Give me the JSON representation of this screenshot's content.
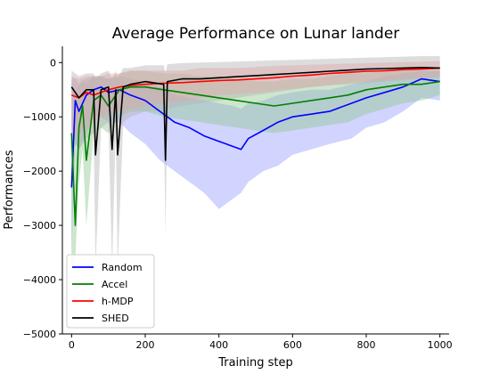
{
  "chart_data": {
    "type": "line",
    "title": "Average Performance on Lunar lander",
    "xlabel": "Training step",
    "ylabel": "Performances",
    "xlim": [
      -25,
      1025
    ],
    "ylim": [
      -5000,
      300
    ],
    "xticks": [
      0,
      200,
      400,
      600,
      800,
      1000
    ],
    "yticks": [
      0,
      -1000,
      -2000,
      -3000,
      -4000,
      -5000
    ],
    "xtick_labels": [
      "0",
      "200",
      "400",
      "600",
      "800",
      "1000"
    ],
    "ytick_labels": [
      "0",
      "−1000",
      "−2000",
      "−3000",
      "−4000",
      "−5000"
    ],
    "grid": false,
    "legend_position": "lower-left",
    "series": [
      {
        "name": "Random",
        "color": "#0000ff",
        "band_color": "#9aa0ff",
        "x": [
          0,
          10,
          20,
          40,
          60,
          80,
          100,
          130,
          160,
          200,
          240,
          280,
          320,
          360,
          400,
          440,
          460,
          480,
          520,
          560,
          600,
          650,
          700,
          760,
          800,
          850,
          900,
          950,
          1000
        ],
        "values": [
          -2300,
          -700,
          -900,
          -600,
          -500,
          -450,
          -550,
          -500,
          -600,
          -700,
          -900,
          -1100,
          -1200,
          -1350,
          -1450,
          -1550,
          -1600,
          -1400,
          -1250,
          -1100,
          -1000,
          -950,
          -900,
          -750,
          -650,
          -550,
          -450,
          -300,
          -350
        ],
        "band": [
          [
            -3500,
            -300
          ],
          [
            -1500,
            -300
          ],
          [
            -1600,
            -400
          ],
          [
            -1300,
            -300
          ],
          [
            -1000,
            -250
          ],
          [
            -1000,
            -250
          ],
          [
            -1100,
            -300
          ],
          [
            -1100,
            -250
          ],
          [
            -1300,
            -300
          ],
          [
            -1500,
            -350
          ],
          [
            -1800,
            -450
          ],
          [
            -2000,
            -600
          ],
          [
            -2200,
            -650
          ],
          [
            -2400,
            -700
          ],
          [
            -2700,
            -750
          ],
          [
            -2500,
            -800
          ],
          [
            -2400,
            -850
          ],
          [
            -2200,
            -750
          ],
          [
            -2000,
            -700
          ],
          [
            -1900,
            -600
          ],
          [
            -1700,
            -550
          ],
          [
            -1600,
            -500
          ],
          [
            -1500,
            -500
          ],
          [
            -1400,
            -400
          ],
          [
            -1200,
            -350
          ],
          [
            -1100,
            -250
          ],
          [
            -900,
            -200
          ],
          [
            -650,
            -150
          ],
          [
            -700,
            -150
          ]
        ]
      },
      {
        "name": "Accel",
        "color": "#008000",
        "band_color": "#90c890",
        "x": [
          0,
          10,
          20,
          30,
          40,
          60,
          80,
          100,
          130,
          160,
          200,
          250,
          300,
          350,
          400,
          450,
          500,
          550,
          600,
          650,
          700,
          750,
          800,
          850,
          900,
          950,
          1000
        ],
        "values": [
          -1300,
          -3000,
          -1200,
          -800,
          -1800,
          -700,
          -600,
          -800,
          -500,
          -450,
          -450,
          -500,
          -550,
          -600,
          -650,
          -700,
          -750,
          -800,
          -750,
          -700,
          -650,
          -600,
          -500,
          -450,
          -400,
          -400,
          -350
        ],
        "band": [
          [
            -3800,
            -300
          ],
          [
            -3600,
            -600
          ],
          [
            -2200,
            -400
          ],
          [
            -1600,
            -300
          ],
          [
            -3000,
            -400
          ],
          [
            -1300,
            -250
          ],
          [
            -1200,
            -250
          ],
          [
            -1300,
            -300
          ],
          [
            -1000,
            -200
          ],
          [
            -900,
            -150
          ],
          [
            -900,
            -150
          ],
          [
            -1000,
            -200
          ],
          [
            -1050,
            -200
          ],
          [
            -1100,
            -250
          ],
          [
            -1150,
            -250
          ],
          [
            -1200,
            -300
          ],
          [
            -1250,
            -350
          ],
          [
            -1300,
            -350
          ],
          [
            -1250,
            -300
          ],
          [
            -1200,
            -300
          ],
          [
            -1150,
            -250
          ],
          [
            -1100,
            -200
          ],
          [
            -950,
            -200
          ],
          [
            -850,
            -150
          ],
          [
            -750,
            -150
          ],
          [
            -700,
            -150
          ],
          [
            -600,
            -150
          ]
        ]
      },
      {
        "name": "h-MDP",
        "color": "#ff0000",
        "band_color": "#ffa0a0",
        "x": [
          0,
          20,
          40,
          60,
          80,
          100,
          130,
          160,
          200,
          250,
          300,
          350,
          400,
          450,
          500,
          550,
          600,
          650,
          700,
          750,
          800,
          850,
          900,
          950,
          1000
        ],
        "values": [
          -600,
          -650,
          -550,
          -600,
          -550,
          -500,
          -450,
          -420,
          -400,
          -380,
          -370,
          -350,
          -330,
          -320,
          -300,
          -280,
          -250,
          -230,
          -200,
          -180,
          -160,
          -150,
          -130,
          -120,
          -100
        ],
        "band": [
          [
            -1400,
            -250
          ],
          [
            -1300,
            -300
          ],
          [
            -1200,
            -250
          ],
          [
            -1100,
            -250
          ],
          [
            -1000,
            -250
          ],
          [
            -950,
            -200
          ],
          [
            -900,
            -200
          ],
          [
            -850,
            -150
          ],
          [
            -800,
            -150
          ],
          [
            -750,
            -150
          ],
          [
            -700,
            -150
          ],
          [
            -650,
            -100
          ],
          [
            -600,
            -100
          ],
          [
            -580,
            -100
          ],
          [
            -560,
            -80
          ],
          [
            -520,
            -60
          ],
          [
            -480,
            -50
          ],
          [
            -450,
            -40
          ],
          [
            -420,
            -30
          ],
          [
            -380,
            -20
          ],
          [
            -350,
            -10
          ],
          [
            -330,
            0
          ],
          [
            -300,
            10
          ],
          [
            -280,
            20
          ],
          [
            -260,
            30
          ]
        ]
      },
      {
        "name": "SHED",
        "color": "#000000",
        "band_color": "#b4b4b4",
        "x": [
          0,
          10,
          20,
          40,
          60,
          65,
          80,
          100,
          110,
          120,
          125,
          140,
          160,
          200,
          250,
          255,
          260,
          300,
          350,
          400,
          450,
          500,
          550,
          600,
          650,
          700,
          750,
          800,
          850,
          900,
          950,
          1000
        ],
        "values": [
          -450,
          -550,
          -650,
          -500,
          -500,
          -1700,
          -500,
          -450,
          -1600,
          -500,
          -1700,
          -450,
          -400,
          -350,
          -400,
          -1800,
          -350,
          -300,
          -300,
          -280,
          -260,
          -240,
          -220,
          -200,
          -180,
          -160,
          -140,
          -120,
          -110,
          -100,
          -90,
          -100
        ],
        "band": [
          [
            -1200,
            -150
          ],
          [
            -1500,
            -200
          ],
          [
            -1600,
            -250
          ],
          [
            -1400,
            -200
          ],
          [
            -1300,
            -200
          ],
          [
            -3800,
            -300
          ],
          [
            -1200,
            -200
          ],
          [
            -1100,
            -150
          ],
          [
            -3800,
            -300
          ],
          [
            -1200,
            -150
          ],
          [
            -3800,
            -300
          ],
          [
            -1100,
            -100
          ],
          [
            -1000,
            -100
          ],
          [
            -900,
            -50
          ],
          [
            -900,
            -50
          ],
          [
            -3200,
            -200
          ],
          [
            -850,
            -30
          ],
          [
            -800,
            -10
          ],
          [
            -750,
            0
          ],
          [
            -700,
            10
          ],
          [
            -650,
            20
          ],
          [
            -600,
            30
          ],
          [
            -550,
            40
          ],
          [
            -500,
            50
          ],
          [
            -450,
            60
          ],
          [
            -420,
            70
          ],
          [
            -400,
            80
          ],
          [
            -380,
            90
          ],
          [
            -350,
            100
          ],
          [
            -330,
            110
          ],
          [
            -300,
            120
          ],
          [
            -280,
            120
          ]
        ]
      }
    ]
  }
}
